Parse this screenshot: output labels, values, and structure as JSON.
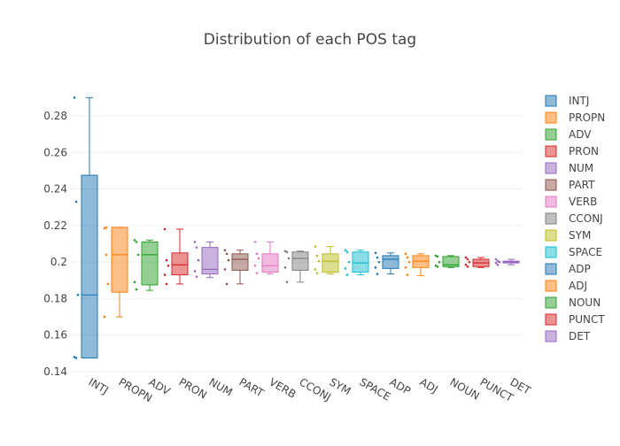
{
  "chart_data": {
    "type": "box",
    "title": "Distribution of each POS tag",
    "xlabel": "",
    "ylabel": "",
    "ylim": [
      0.14,
      0.295
    ],
    "yticks": [
      0.14,
      0.16,
      0.18,
      0.2,
      0.22,
      0.24,
      0.26,
      0.28
    ],
    "grid": true,
    "legend_position": "right",
    "categories": [
      "INTJ",
      "PROPN",
      "ADV",
      "PRON",
      "NUM",
      "PART",
      "VERB",
      "CCONJ",
      "SYM",
      "SPACE",
      "ADP",
      "ADJ",
      "NOUN",
      "PUNCT",
      "DET"
    ],
    "series": [
      {
        "name": "INTJ",
        "color": "#1f77b4",
        "min": 0.1475,
        "q1": 0.1475,
        "median": 0.182,
        "q3": 0.2475,
        "max": 0.29,
        "points": [
          0.29,
          0.233,
          0.182,
          0.148,
          0.1475
        ]
      },
      {
        "name": "PROPN",
        "color": "#ff7f0e",
        "min": 0.17,
        "q1": 0.1835,
        "median": 0.204,
        "q3": 0.219,
        "max": 0.219,
        "points": [
          0.2185,
          0.219,
          0.188,
          0.17,
          0.204
        ]
      },
      {
        "name": "ADV",
        "color": "#2ca02c",
        "min": 0.1845,
        "q1": 0.1875,
        "median": 0.204,
        "q3": 0.211,
        "max": 0.212,
        "points": [
          0.212,
          0.211,
          0.204,
          0.189,
          0.185
        ]
      },
      {
        "name": "PRON",
        "color": "#d62728",
        "min": 0.188,
        "q1": 0.193,
        "median": 0.1985,
        "q3": 0.205,
        "max": 0.218,
        "points": [
          0.218,
          0.201,
          0.198,
          0.193,
          0.188
        ]
      },
      {
        "name": "NUM",
        "color": "#9467bd",
        "min": 0.1915,
        "q1": 0.1935,
        "median": 0.196,
        "q3": 0.208,
        "max": 0.211,
        "points": [
          0.211,
          0.208,
          0.201,
          0.195,
          0.192
        ]
      },
      {
        "name": "PART",
        "color": "#8c564b",
        "min": 0.188,
        "q1": 0.1955,
        "median": 0.2015,
        "q3": 0.2045,
        "max": 0.2065,
        "points": [
          0.2065,
          0.2045,
          0.201,
          0.196,
          0.188
        ]
      },
      {
        "name": "VERB",
        "color": "#e377c2",
        "min": 0.1935,
        "q1": 0.1945,
        "median": 0.198,
        "q3": 0.2045,
        "max": 0.211,
        "points": [
          0.211,
          0.2045,
          0.202,
          0.198,
          0.194
        ]
      },
      {
        "name": "CCONJ",
        "color": "#7f7f7f",
        "min": 0.189,
        "q1": 0.1955,
        "median": 0.202,
        "q3": 0.2055,
        "max": 0.206,
        "points": [
          0.206,
          0.2055,
          0.202,
          0.197,
          0.189
        ]
      },
      {
        "name": "SYM",
        "color": "#bcbd22",
        "min": 0.1935,
        "q1": 0.1945,
        "median": 0.2005,
        "q3": 0.2045,
        "max": 0.2085,
        "points": [
          0.2085,
          0.2035,
          0.2005,
          0.196,
          0.194
        ]
      },
      {
        "name": "SPACE",
        "color": "#17becf",
        "min": 0.193,
        "q1": 0.1945,
        "median": 0.1995,
        "q3": 0.2055,
        "max": 0.2065,
        "points": [
          0.2065,
          0.2055,
          0.2,
          0.1965,
          0.193
        ]
      },
      {
        "name": "ADP",
        "color": "#1f77b4",
        "min": 0.1935,
        "q1": 0.1965,
        "median": 0.2015,
        "q3": 0.2035,
        "max": 0.205,
        "points": [
          0.205,
          0.2025,
          0.2,
          0.197,
          0.1935
        ]
      },
      {
        "name": "ADJ",
        "color": "#ff7f0e",
        "min": 0.1925,
        "q1": 0.197,
        "median": 0.2005,
        "q3": 0.2035,
        "max": 0.2045,
        "points": [
          0.2045,
          0.2025,
          0.2,
          0.197,
          0.193
        ]
      },
      {
        "name": "NOUN",
        "color": "#2ca02c",
        "min": 0.197,
        "q1": 0.1975,
        "median": 0.1985,
        "q3": 0.203,
        "max": 0.2035,
        "points": [
          0.2035,
          0.203,
          0.2,
          0.198,
          0.1975
        ]
      },
      {
        "name": "PUNCT",
        "color": "#d62728",
        "min": 0.197,
        "q1": 0.1975,
        "median": 0.1995,
        "q3": 0.2015,
        "max": 0.2025,
        "points": [
          0.2025,
          0.2015,
          0.2,
          0.1985,
          0.1975
        ]
      },
      {
        "name": "DET",
        "color": "#9467bd",
        "min": 0.1985,
        "q1": 0.1995,
        "median": 0.2,
        "q3": 0.2005,
        "max": 0.2015,
        "points": [
          0.2015,
          0.2005,
          0.2,
          0.1995,
          0.1985
        ]
      }
    ]
  }
}
